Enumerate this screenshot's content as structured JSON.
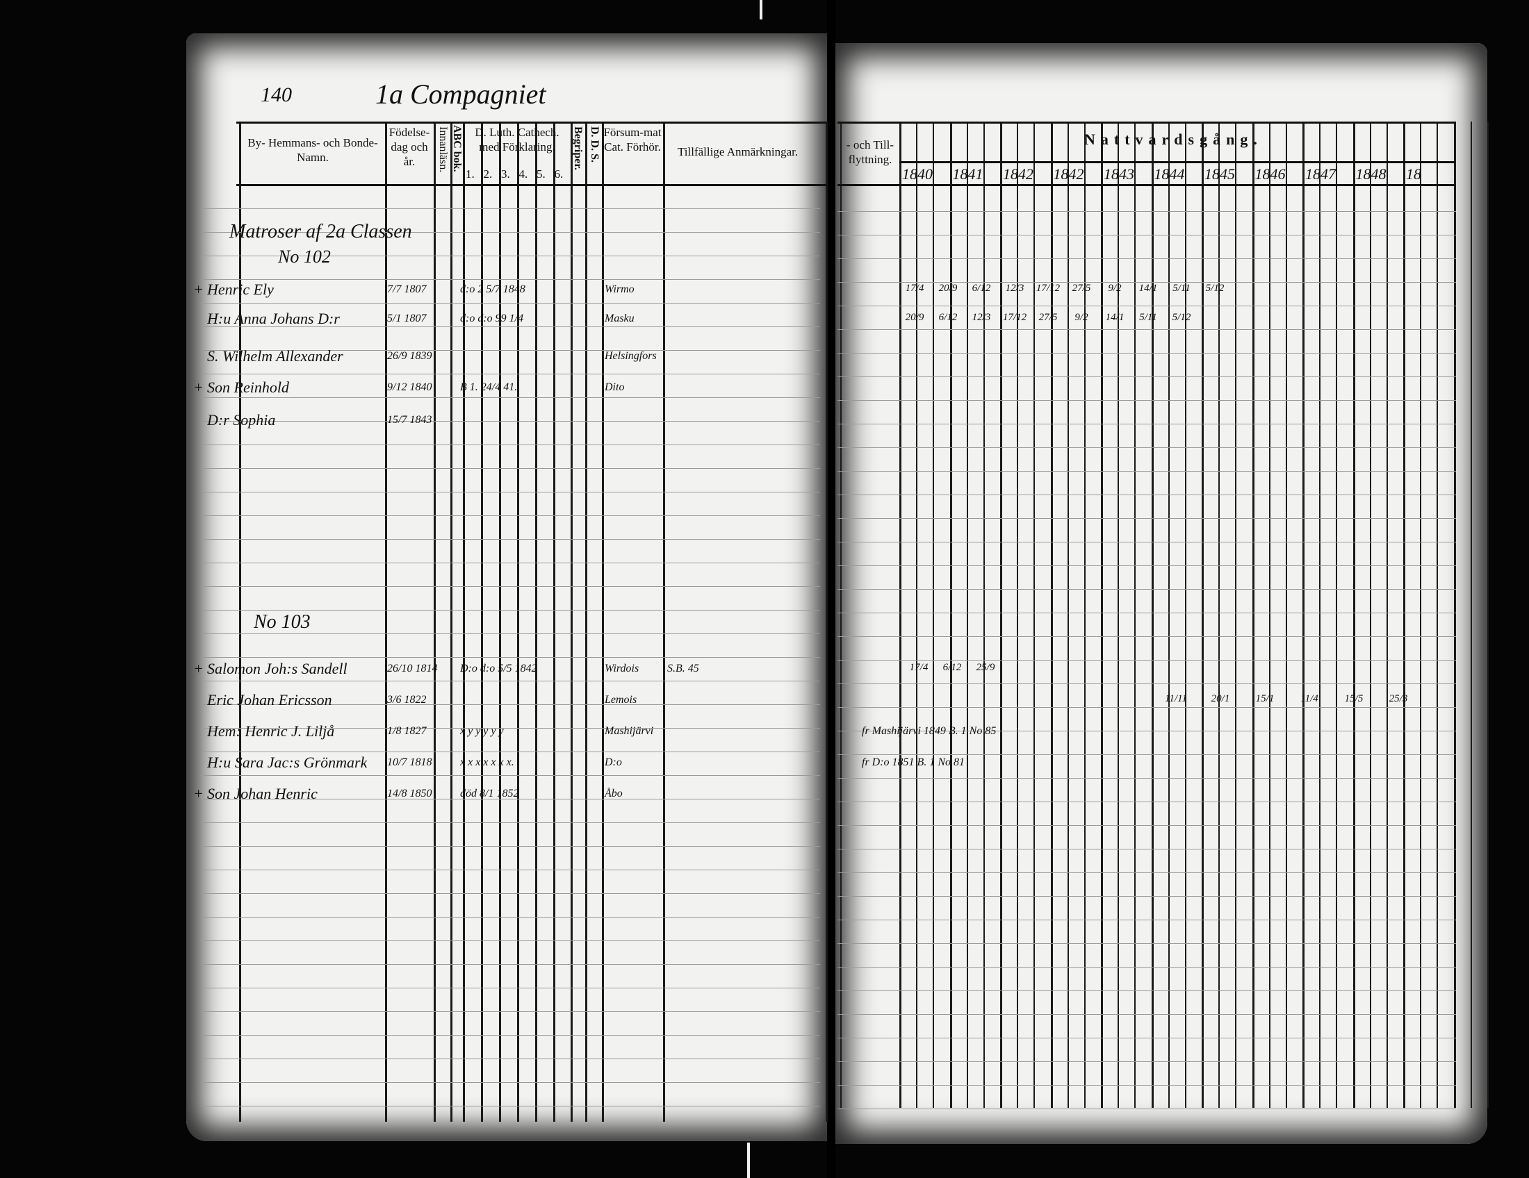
{
  "document": {
    "page_number": "140",
    "title": "1a Compagniet",
    "left_headers": {
      "name": "By- Hemmans- och Bonde-Namn.",
      "birth": "Födelse-dag och år.",
      "innanlasn": "Innanläsn.",
      "abc_bok": "ABC bok.",
      "catech": "D. Luth. Cathech. med Förklaring.",
      "catech_parts": [
        "1.",
        "2.",
        "3.",
        "4.",
        "5.",
        "6."
      ],
      "begriper": "Begriper.",
      "dds": "D. D. S.",
      "forsummat": "Försum-mat Cat. Förhör.",
      "anmarkningar": "Tillfällige Anmärkningar."
    },
    "right_headers": {
      "flyttning": "- och Till-flyttning.",
      "nattvard": "Nattvardsgång.",
      "years": [
        "1840",
        "1841",
        "1842",
        "1842",
        "1843",
        "1844",
        "1845",
        "1846",
        "1847",
        "1848",
        "18"
      ]
    },
    "group1": {
      "heading": "Matroser af 2a Classen",
      "number": "No 102",
      "entries": [
        {
          "mark": "+",
          "name": "Henric Ely",
          "birth": "7/7 1807",
          "catech": "d:o 2 5/7 1848",
          "place": "Wirmo",
          "right": [
            "17/4",
            "20/9",
            "6/12",
            "12/3",
            "17/12",
            "27/5",
            "9/2",
            "14/1",
            "5/11",
            "5/12"
          ]
        },
        {
          "mark": "",
          "name": "H:u Anna Johans D:r",
          "birth": "5/1 1807",
          "catech": "d:o d:o 99 1/4",
          "place": "Masku",
          "right": [
            "20/9",
            "6/12",
            "12/3",
            "17/12",
            "27/5",
            "9/2",
            "14/1",
            "5/11",
            "5/12"
          ]
        },
        {
          "mark": "",
          "name": "S. Wilhelm Allexander",
          "birth": "26/9 1839",
          "catech": "",
          "place": "Helsingfors",
          "right": []
        },
        {
          "mark": "+",
          "name": "Son Reinhold",
          "birth": "9/12 1840",
          "catech": "B 1. 24/4 41.",
          "place": "Dito",
          "right": []
        },
        {
          "mark": "",
          "name": "D:r Sophia",
          "birth": "15/7 1843",
          "catech": "",
          "place": "",
          "right": []
        }
      ]
    },
    "group2": {
      "number": "No 103",
      "entries": [
        {
          "mark": "+",
          "name": "Salomon Joh:s Sandell",
          "birth": "26/10 1814",
          "catech": "D:o d:o 5/5 1842",
          "place": "Wirdois",
          "note": "S.B. 45",
          "right": [
            "17/4",
            "6/12",
            "25/9"
          ]
        },
        {
          "mark": "",
          "name": "Eric Johan Ericsson",
          "birth": "3/6 1822",
          "catech": "",
          "place": "Lemois",
          "note": "",
          "right": [
            "11/11",
            "20/1",
            "15/1",
            "11/4",
            "15/5",
            "25/3"
          ]
        },
        {
          "mark": "",
          "name": "Hem: Henric J. Liljå",
          "birth": "1/8 1827",
          "catech": "x y y y y y",
          "place": "Mashijärvi",
          "note": "",
          "moved": "fr Mashijärvi 1849 B. 1 No 85",
          "right": []
        },
        {
          "mark": "",
          "name": "H:u Sara Jac:s Grönmark",
          "birth": "10/7 1818",
          "catech": "x x x x x x x.",
          "place": "D:o",
          "note": "",
          "moved": "fr D:o 1851 B. 1 No 81",
          "right": []
        },
        {
          "mark": "+",
          "name": "Son Johan Henric",
          "birth": "14/8 1850",
          "catech": "död 8/1 1852",
          "place": "Åbo",
          "note": "",
          "right": []
        }
      ]
    }
  }
}
